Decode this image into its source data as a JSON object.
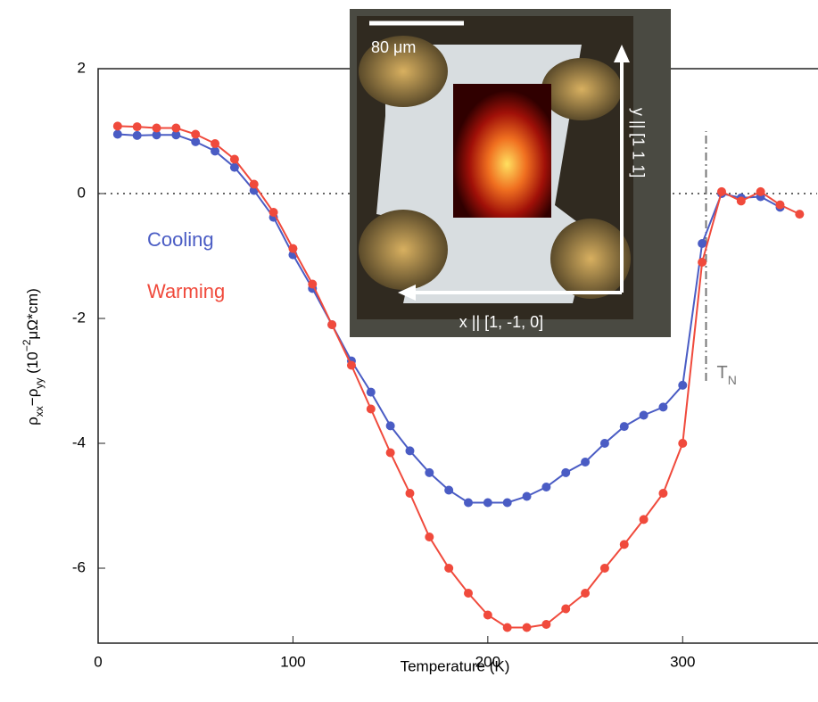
{
  "chart_data": {
    "type": "line",
    "x_label": "Temperature (K)",
    "y_label_parts": [
      "ρ",
      "xx",
      "−ρ",
      "yy",
      "  (10",
      "−2",
      "μΩ*cm)"
    ],
    "xlim": [
      0,
      369
    ],
    "xticks": [
      0,
      100,
      200,
      300
    ],
    "ylim": [
      -7.2,
      2
    ],
    "yticks": [
      -6,
      -4,
      -2,
      0,
      2
    ],
    "hline": 0,
    "vline": {
      "x": 312,
      "y": [
        -3,
        1
      ],
      "label_parts": [
        "T",
        "N"
      ]
    },
    "series": [
      {
        "name": "Cooling",
        "color": "#4a5cc4",
        "x": [
          10,
          20,
          30,
          40,
          50,
          60,
          70,
          80,
          90,
          100,
          110,
          120,
          130,
          140,
          150,
          160,
          170,
          180,
          190,
          200,
          210,
          220,
          230,
          240,
          250,
          260,
          270,
          280,
          290,
          300,
          310,
          320,
          330,
          340,
          350
        ],
        "values": [
          0.95,
          0.93,
          0.94,
          0.94,
          0.83,
          0.68,
          0.42,
          0.05,
          -0.38,
          -0.98,
          -1.52,
          -2.1,
          -2.68,
          -3.18,
          -3.72,
          -4.12,
          -4.47,
          -4.75,
          -4.95,
          -4.95,
          -4.95,
          -4.85,
          -4.7,
          -4.47,
          -4.3,
          -4.0,
          -3.73,
          -3.55,
          -3.42,
          -3.07,
          -0.8,
          0.0,
          -0.07,
          -0.05,
          -0.22
        ]
      },
      {
        "name": "Warming",
        "color": "#f04a3c",
        "x": [
          10,
          20,
          30,
          40,
          50,
          60,
          70,
          80,
          90,
          100,
          110,
          120,
          130,
          140,
          150,
          160,
          170,
          180,
          190,
          200,
          210,
          220,
          230,
          240,
          250,
          260,
          270,
          280,
          290,
          300,
          310,
          320,
          330,
          340,
          350,
          360
        ],
        "values": [
          1.08,
          1.07,
          1.05,
          1.05,
          0.95,
          0.8,
          0.55,
          0.15,
          -0.3,
          -0.88,
          -1.45,
          -2.1,
          -2.75,
          -3.45,
          -4.15,
          -4.8,
          -5.5,
          -6.0,
          -6.4,
          -6.75,
          -6.95,
          -6.95,
          -6.9,
          -6.65,
          -6.4,
          -6.0,
          -5.62,
          -5.22,
          -4.8,
          -4.0,
          -1.1,
          0.03,
          -0.12,
          0.03,
          -0.18,
          -0.33
        ]
      }
    ],
    "inset": {
      "scale_label": "80 μm",
      "y_axis_label": "y || [1 1 1]",
      "x_axis_label": "x || [1, -1, 0]"
    }
  }
}
